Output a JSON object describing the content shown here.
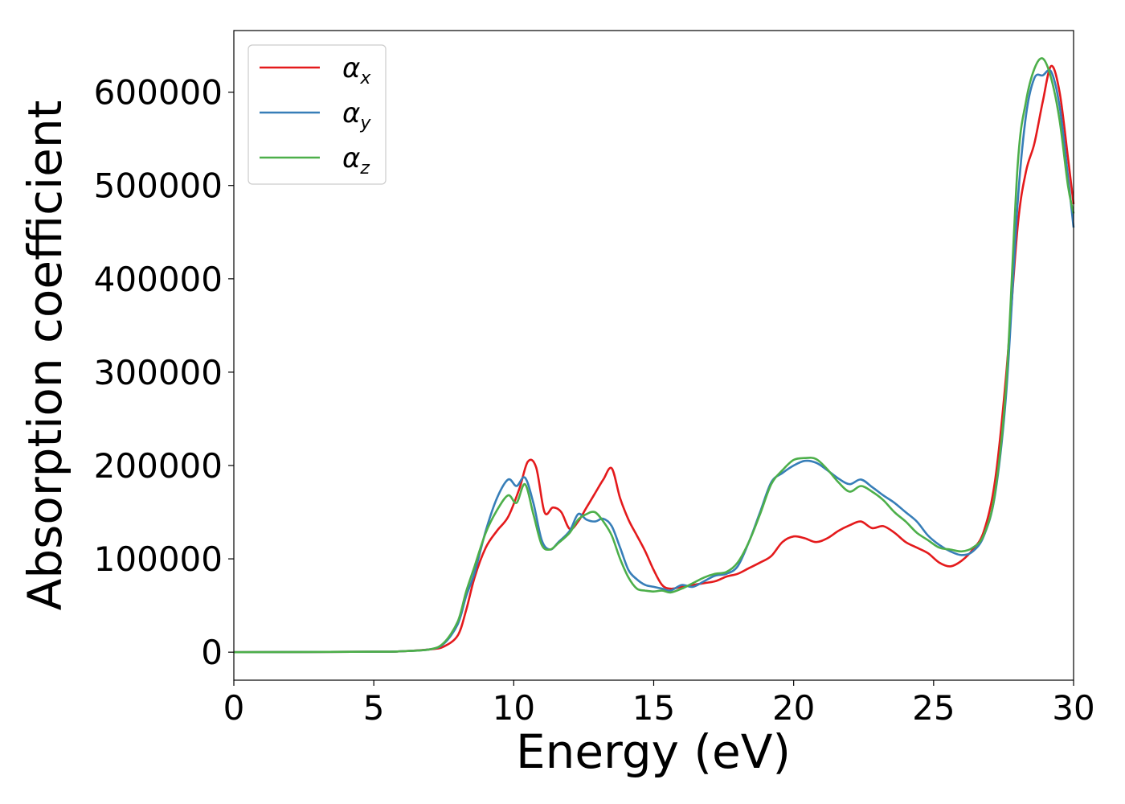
{
  "chart_data": {
    "type": "line",
    "xlabel": "Energy (eV)",
    "ylabel": "Absorption coefficient",
    "xlim": [
      0,
      30
    ],
    "ylim": [
      -30000,
      666000
    ],
    "xticks": [
      0,
      5,
      10,
      15,
      20,
      25,
      30
    ],
    "yticks": [
      0,
      100000,
      200000,
      300000,
      400000,
      500000,
      600000
    ],
    "legend_position": "top-left",
    "grid": false,
    "series": [
      {
        "name": "α_x",
        "symbol": "α",
        "subscript": "x",
        "color": "#e41a1c",
        "x": [
          0,
          5,
          6,
          7,
          7.5,
          8,
          8.3,
          8.6,
          9,
          9.4,
          9.8,
          10.2,
          10.5,
          10.8,
          11.1,
          11.4,
          11.7,
          12,
          12.3,
          12.6,
          12.9,
          13.2,
          13.5,
          13.8,
          14.1,
          14.4,
          14.7,
          15,
          15.3,
          15.6,
          16,
          16.4,
          16.8,
          17.2,
          17.6,
          18,
          18.4,
          18.8,
          19.2,
          19.6,
          20,
          20.4,
          20.8,
          21.2,
          21.6,
          22,
          22.4,
          22.8,
          23.2,
          23.6,
          24,
          24.4,
          24.8,
          25.2,
          25.6,
          26,
          26.4,
          26.8,
          27.2,
          27.6,
          28,
          28.3,
          28.6,
          28.9,
          29.2,
          29.5,
          29.8,
          30
        ],
        "y": [
          0,
          500,
          1000,
          3000,
          6000,
          18000,
          45000,
          80000,
          112000,
          130000,
          145000,
          175000,
          204000,
          198000,
          150000,
          155000,
          150000,
          132000,
          140000,
          155000,
          170000,
          185000,
          197000,
          165000,
          142000,
          125000,
          108000,
          88000,
          72000,
          68000,
          70000,
          72000,
          74000,
          76000,
          81000,
          84000,
          90000,
          96000,
          103000,
          118000,
          124000,
          122000,
          118000,
          122000,
          130000,
          136000,
          140000,
          133000,
          135000,
          128000,
          118000,
          112000,
          106000,
          96000,
          92000,
          98000,
          110000,
          130000,
          185000,
          300000,
          455000,
          515000,
          545000,
          590000,
          628000,
          600000,
          530000,
          480000
        ]
      },
      {
        "name": "α_y",
        "symbol": "α",
        "subscript": "y",
        "color": "#377eb8",
        "x": [
          0,
          5,
          6,
          7,
          7.5,
          8,
          8.3,
          8.6,
          9,
          9.4,
          9.8,
          10.1,
          10.4,
          10.7,
          11,
          11.3,
          11.6,
          12,
          12.3,
          12.6,
          12.9,
          13.2,
          13.5,
          13.8,
          14.1,
          14.4,
          14.7,
          15,
          15.3,
          15.6,
          16,
          16.4,
          16.8,
          17.2,
          17.6,
          18,
          18.4,
          18.8,
          19.2,
          19.6,
          20,
          20.4,
          20.8,
          21.2,
          21.6,
          22,
          22.4,
          22.8,
          23.2,
          23.6,
          24,
          24.4,
          24.8,
          25.2,
          25.6,
          26,
          26.4,
          26.8,
          27.2,
          27.6,
          28,
          28.3,
          28.6,
          28.9,
          29.2,
          29.5,
          29.8,
          30
        ],
        "y": [
          0,
          500,
          1000,
          3000,
          9000,
          30000,
          60000,
          85000,
          130000,
          165000,
          185000,
          178000,
          187000,
          160000,
          120000,
          110000,
          118000,
          130000,
          148000,
          142000,
          140000,
          143000,
          135000,
          112000,
          88000,
          78000,
          72000,
          70000,
          68000,
          66000,
          72000,
          70000,
          76000,
          82000,
          84000,
          92000,
          118000,
          150000,
          182000,
          192000,
          200000,
          205000,
          203000,
          195000,
          186000,
          180000,
          185000,
          177000,
          168000,
          160000,
          150000,
          140000,
          125000,
          115000,
          108000,
          104000,
          108000,
          125000,
          170000,
          280000,
          480000,
          575000,
          615000,
          618000,
          622000,
          585000,
          510000,
          455000
        ]
      },
      {
        "name": "α_z",
        "symbol": "α",
        "subscript": "z",
        "color": "#4daf4a",
        "x": [
          0,
          5,
          6,
          7,
          7.5,
          8,
          8.3,
          8.6,
          9,
          9.4,
          9.8,
          10.1,
          10.4,
          10.7,
          11,
          11.3,
          11.6,
          12,
          12.3,
          12.6,
          12.9,
          13.2,
          13.5,
          13.8,
          14.1,
          14.4,
          14.7,
          15,
          15.3,
          15.6,
          16,
          16.4,
          16.8,
          17.2,
          17.6,
          18,
          18.4,
          18.8,
          19.2,
          19.6,
          20,
          20.4,
          20.8,
          21.2,
          21.6,
          22,
          22.4,
          22.8,
          23.2,
          23.6,
          24,
          24.4,
          24.8,
          25.2,
          25.6,
          26,
          26.4,
          26.8,
          27.2,
          27.6,
          28,
          28.3,
          28.6,
          28.9,
          29.2,
          29.5,
          29.8,
          30
        ],
        "y": [
          0,
          500,
          1000,
          3000,
          10000,
          33000,
          65000,
          92000,
          128000,
          152000,
          168000,
          160000,
          180000,
          148000,
          115000,
          110000,
          117000,
          128000,
          142000,
          148000,
          150000,
          140000,
          125000,
          100000,
          80000,
          68000,
          66000,
          65000,
          66000,
          64000,
          68000,
          74000,
          80000,
          84000,
          86000,
          96000,
          118000,
          148000,
          180000,
          195000,
          206000,
          208000,
          207000,
          196000,
          182000,
          172000,
          178000,
          172000,
          163000,
          150000,
          140000,
          128000,
          120000,
          112000,
          110000,
          108000,
          112000,
          126000,
          172000,
          290000,
          520000,
          590000,
          625000,
          636000,
          615000,
          570000,
          500000,
          470000
        ]
      }
    ]
  }
}
